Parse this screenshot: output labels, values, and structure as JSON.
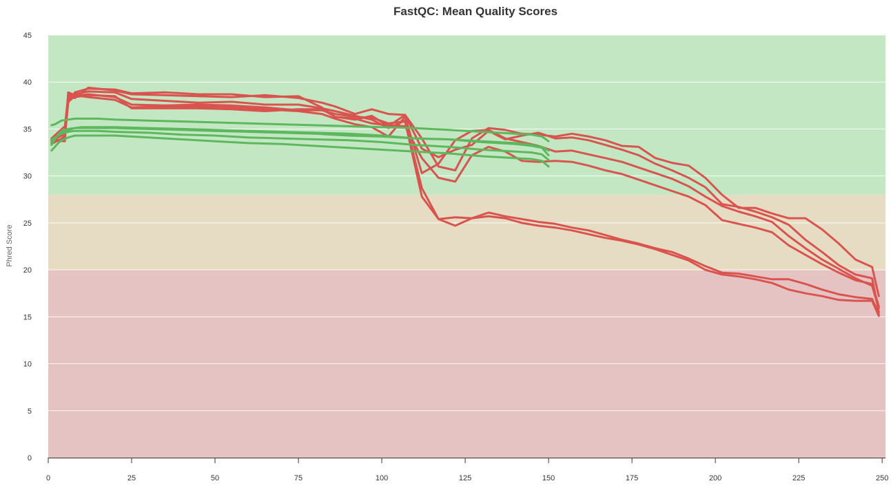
{
  "chart_data": {
    "type": "line",
    "title": "FastQC: Mean Quality Scores",
    "xlabel": "",
    "ylabel": "Phred Score",
    "xlim": [
      0,
      251
    ],
    "ylim": [
      0,
      45
    ],
    "x_ticks": [
      0,
      25,
      50,
      75,
      100,
      125,
      150,
      175,
      200,
      225,
      250
    ],
    "y_ticks": [
      0,
      5,
      10,
      15,
      20,
      25,
      30,
      35,
      40,
      45
    ],
    "grid": true,
    "legend": "none",
    "bands": [
      {
        "from": 28,
        "to": 45,
        "color": "#c3e6c3"
      },
      {
        "from": 20,
        "to": 28,
        "color": "#e6dcc3"
      },
      {
        "from": 0,
        "to": 20,
        "color": "#e6c3c3"
      }
    ],
    "colors": {
      "pass": "#5cb85c",
      "fail": "#d9534f"
    },
    "series": [
      {
        "status": "pass",
        "x": [
          1,
          2,
          3,
          4,
          6,
          8,
          10,
          15,
          20,
          30,
          40,
          50,
          60,
          70,
          80,
          90,
          100,
          110,
          120,
          130,
          140,
          145,
          148,
          150
        ],
        "y": [
          35.4,
          35.5,
          35.7,
          35.9,
          36.0,
          36.1,
          36.1,
          36.1,
          36.0,
          35.9,
          35.8,
          35.7,
          35.6,
          35.5,
          35.4,
          35.3,
          35.2,
          35.1,
          34.9,
          34.7,
          34.5,
          34.4,
          34.2,
          33.7
        ]
      },
      {
        "status": "pass",
        "x": [
          1,
          2,
          3,
          4,
          6,
          8,
          10,
          15,
          20,
          30,
          40,
          50,
          60,
          70,
          80,
          90,
          100,
          110,
          120,
          130,
          140,
          145,
          148,
          150
        ],
        "y": [
          33.3,
          33.9,
          34.4,
          34.8,
          35.0,
          35.1,
          35.2,
          35.2,
          35.2,
          35.1,
          35.0,
          34.9,
          34.8,
          34.7,
          34.6,
          34.5,
          34.3,
          34.0,
          33.9,
          33.6,
          33.4,
          33.2,
          33.0,
          32.2
        ]
      },
      {
        "status": "pass",
        "x": [
          1,
          2,
          3,
          4,
          6,
          8,
          10,
          15,
          20,
          30,
          40,
          50,
          60,
          70,
          80,
          90,
          100,
          110,
          120,
          130,
          140,
          145,
          148,
          150
        ],
        "y": [
          33.6,
          34.0,
          34.3,
          34.5,
          34.7,
          34.8,
          34.8,
          34.8,
          34.7,
          34.6,
          34.4,
          34.3,
          34.1,
          34.0,
          33.9,
          33.8,
          33.6,
          33.3,
          33.1,
          32.8,
          32.6,
          32.5,
          32.3,
          31.7
        ]
      },
      {
        "status": "pass",
        "x": [
          1,
          2,
          3,
          4,
          6,
          8,
          10,
          15,
          20,
          30,
          40,
          50,
          60,
          70,
          80,
          90,
          100,
          110,
          120,
          130,
          140,
          145,
          148,
          150
        ],
        "y": [
          32.7,
          33.1,
          33.5,
          33.8,
          34.1,
          34.3,
          34.3,
          34.3,
          34.3,
          34.1,
          33.9,
          33.7,
          33.5,
          33.4,
          33.2,
          33.0,
          32.8,
          32.6,
          32.4,
          32.1,
          31.9,
          31.8,
          31.6,
          31.0
        ]
      },
      {
        "status": "pass",
        "x": [
          1,
          2,
          3,
          4,
          6,
          8,
          10,
          15,
          20,
          30,
          40,
          50,
          60,
          70,
          80,
          90,
          100,
          110,
          120,
          130,
          140,
          145,
          148,
          150
        ],
        "y": [
          33.9,
          34.1,
          34.3,
          34.6,
          34.9,
          35.1,
          35.1,
          35.1,
          35.1,
          35.0,
          34.9,
          34.8,
          34.7,
          34.6,
          34.5,
          34.3,
          34.2,
          34.0,
          33.9,
          33.7,
          33.5,
          33.3,
          33.1,
          32.7
        ]
      },
      {
        "status": "fail",
        "x": [
          1,
          5,
          6,
          8,
          12,
          20,
          25,
          35,
          45,
          55,
          65,
          75,
          82,
          86,
          92,
          97,
          102,
          107,
          112,
          117,
          122,
          127,
          132,
          137,
          142,
          147,
          152,
          157,
          162,
          167,
          172,
          177,
          182,
          187,
          192,
          197,
          202,
          207,
          212,
          217,
          222,
          227,
          232,
          237,
          242,
          247,
          249
        ],
        "y": [
          33.8,
          33.7,
          38.9,
          38.6,
          38.4,
          38.1,
          37.3,
          37.4,
          37.4,
          37.3,
          37.1,
          36.9,
          36.6,
          36.1,
          35.5,
          35.2,
          34.2,
          36.3,
          30.3,
          31.3,
          33.8,
          34.8,
          34.9,
          34.0,
          33.6,
          33.2,
          32.6,
          32.7,
          32.3,
          31.9,
          31.5,
          30.9,
          30.3,
          29.7,
          28.9,
          27.8,
          26.8,
          26.2,
          25.7,
          25.1,
          23.6,
          22.3,
          21.1,
          20.1,
          19.1,
          18.3,
          15.9
        ]
      },
      {
        "status": "fail",
        "x": [
          1,
          5,
          6,
          8,
          12,
          20,
          25,
          35,
          45,
          55,
          65,
          75,
          82,
          86,
          92,
          97,
          102,
          107,
          112,
          117,
          122,
          127,
          132,
          137,
          142,
          147,
          152,
          157,
          162,
          167,
          172,
          177,
          182,
          187,
          192,
          197,
          202,
          207,
          212,
          217,
          222,
          227,
          232,
          237,
          242,
          247,
          249
        ],
        "y": [
          33.4,
          34.2,
          37.8,
          38.9,
          39.3,
          39.2,
          38.8,
          38.9,
          38.7,
          38.7,
          38.4,
          38.5,
          37.3,
          36.3,
          36.0,
          36.4,
          35.3,
          36.5,
          32.9,
          32.0,
          32.8,
          33.3,
          34.8,
          33.9,
          34.3,
          34.6,
          34.0,
          34.1,
          33.8,
          33.3,
          32.8,
          32.2,
          31.3,
          30.6,
          29.8,
          28.8,
          27.0,
          26.7,
          26.2,
          25.6,
          24.8,
          23.2,
          21.9,
          20.5,
          19.5,
          19.1,
          15.5
        ]
      },
      {
        "status": "fail",
        "x": [
          1,
          5,
          6,
          8,
          12,
          20,
          25,
          35,
          45,
          55,
          65,
          75,
          82,
          86,
          92,
          97,
          102,
          107,
          112,
          117,
          122,
          127,
          132,
          137,
          142,
          147,
          152,
          157,
          162,
          167,
          172,
          177,
          182,
          187,
          192,
          197,
          202,
          207,
          212,
          217,
          222,
          227,
          232,
          237,
          242,
          247,
          249
        ],
        "y": [
          34.0,
          35.3,
          38.5,
          38.3,
          39.4,
          39.1,
          38.7,
          38.6,
          38.5,
          38.4,
          38.6,
          38.3,
          37.8,
          37.4,
          36.6,
          37.1,
          36.6,
          36.5,
          34.0,
          31.0,
          30.6,
          34.0,
          35.1,
          34.9,
          34.5,
          34.4,
          34.2,
          34.5,
          34.2,
          33.8,
          33.2,
          33.1,
          31.9,
          31.4,
          31.1,
          29.8,
          28.0,
          26.6,
          26.6,
          26.0,
          25.5,
          25.5,
          24.3,
          22.8,
          21.1,
          20.3,
          17.2
        ]
      },
      {
        "status": "fail",
        "x": [
          1,
          5,
          6,
          8,
          12,
          20,
          25,
          35,
          45,
          55,
          65,
          75,
          82,
          86,
          92,
          97,
          102,
          107,
          112,
          117,
          122,
          127,
          132,
          137,
          142,
          147,
          152,
          157,
          162,
          167,
          172,
          177,
          182,
          187,
          192,
          197,
          202,
          207,
          212,
          217,
          222,
          227,
          232,
          237,
          242,
          247,
          249
        ],
        "y": [
          33.5,
          34.7,
          37.9,
          38.5,
          38.7,
          38.4,
          37.6,
          37.5,
          37.6,
          37.5,
          37.3,
          37.0,
          37.0,
          36.6,
          36.3,
          36.2,
          35.6,
          35.8,
          27.8,
          25.4,
          25.6,
          25.5,
          25.7,
          25.5,
          25.0,
          24.7,
          24.5,
          24.2,
          23.8,
          23.4,
          23.1,
          22.7,
          22.2,
          21.6,
          21.0,
          20.0,
          19.5,
          19.3,
          19.0,
          18.6,
          17.9,
          17.5,
          17.2,
          16.8,
          16.7,
          16.7,
          15.1
        ]
      },
      {
        "status": "fail",
        "x": [
          1,
          5,
          6,
          8,
          12,
          20,
          25,
          35,
          45,
          55,
          65,
          75,
          82,
          86,
          92,
          97,
          102,
          107,
          112,
          117,
          122,
          127,
          132,
          137,
          142,
          147,
          152,
          157,
          162,
          167,
          172,
          177,
          182,
          187,
          192,
          197,
          202,
          207,
          212,
          217,
          222,
          227,
          232,
          237,
          242,
          247,
          249
        ],
        "y": [
          33.9,
          34.4,
          38.1,
          38.7,
          39.0,
          38.9,
          38.2,
          38.0,
          37.8,
          37.9,
          37.6,
          37.6,
          37.2,
          36.9,
          36.4,
          36.0,
          35.1,
          35.9,
          28.7,
          25.4,
          24.7,
          25.5,
          26.1,
          25.7,
          25.4,
          25.1,
          24.9,
          24.5,
          24.2,
          23.7,
          23.2,
          22.8,
          22.3,
          21.9,
          21.2,
          20.4,
          19.7,
          19.6,
          19.3,
          19.0,
          19.0,
          18.5,
          17.9,
          17.4,
          17.1,
          16.9,
          15.3
        ]
      },
      {
        "status": "fail",
        "x": [
          1,
          5,
          6,
          8,
          12,
          20,
          25,
          35,
          45,
          55,
          65,
          75,
          82,
          86,
          92,
          97,
          102,
          107,
          112,
          117,
          122,
          127,
          132,
          137,
          142,
          147,
          152,
          157,
          162,
          167,
          172,
          177,
          182,
          187,
          192,
          197,
          202,
          207,
          212,
          217,
          222,
          227,
          232,
          237,
          242,
          247,
          249
        ],
        "y": [
          33.7,
          34.9,
          38.7,
          38.4,
          38.6,
          38.5,
          37.2,
          37.2,
          37.2,
          37.1,
          36.9,
          37.1,
          37.1,
          36.3,
          36.1,
          35.6,
          35.4,
          35.3,
          31.9,
          29.8,
          29.4,
          32.2,
          33.1,
          32.6,
          31.6,
          31.5,
          31.6,
          31.5,
          31.1,
          30.6,
          30.2,
          29.6,
          29.0,
          28.4,
          27.8,
          26.9,
          25.3,
          24.9,
          24.5,
          24.0,
          22.6,
          21.6,
          20.6,
          19.7,
          18.9,
          18.5,
          16.1
        ]
      }
    ]
  }
}
